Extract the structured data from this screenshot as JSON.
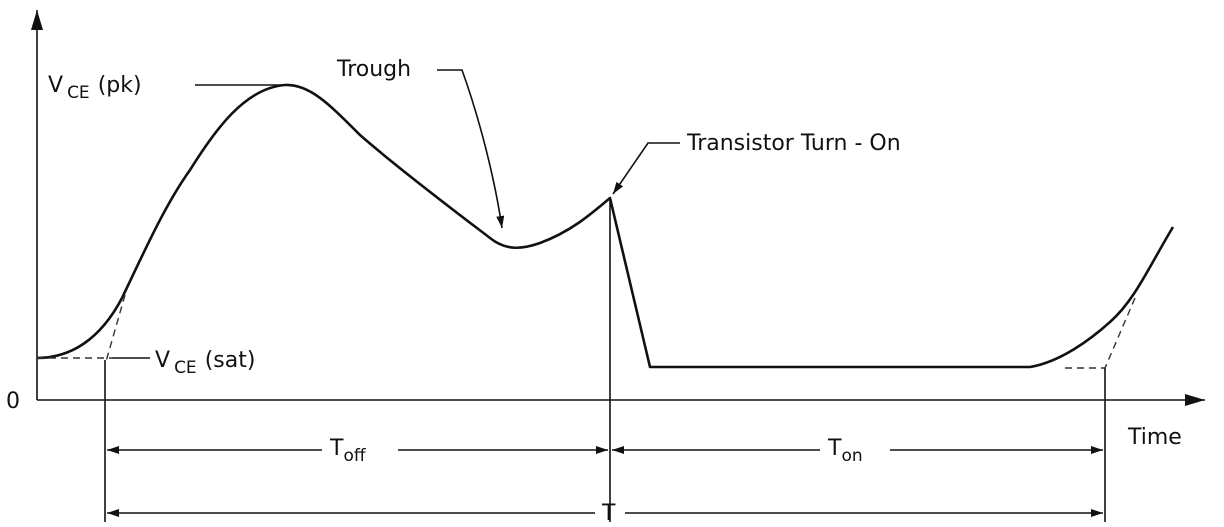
{
  "diagram": {
    "labels": {
      "vce_pk": {
        "main": "V",
        "sub": "CE",
        "suffix": "(pk)"
      },
      "trough": "Trough",
      "turn_on": "Transistor Turn - On",
      "vce_sat": {
        "main": "V",
        "sub": "CE",
        "suffix": "(sat)"
      },
      "origin": "0",
      "time": "Time",
      "t_off": {
        "main": "T",
        "sub": "off"
      },
      "t_on": {
        "main": "T",
        "sub": "on"
      },
      "period": "T"
    }
  }
}
